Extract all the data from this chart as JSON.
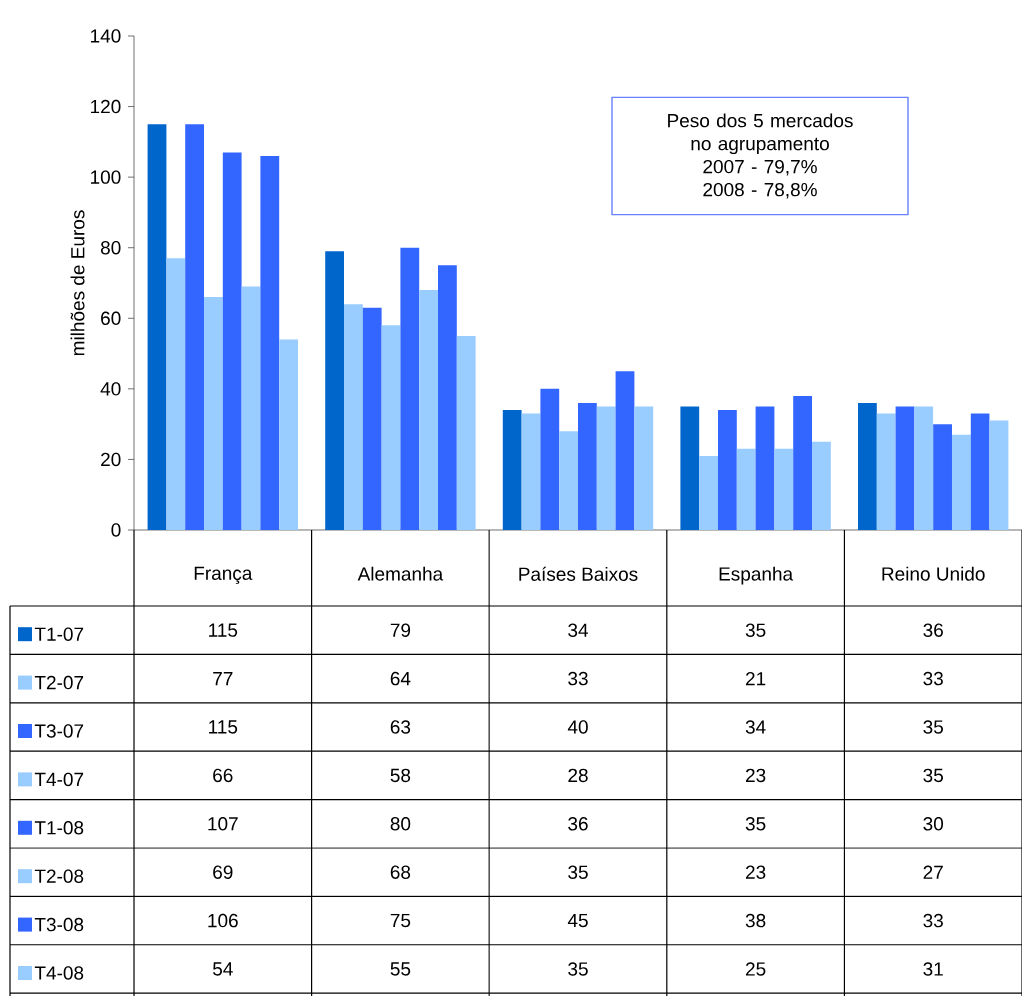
{
  "chart_data": {
    "type": "bar",
    "ylabel": "milhões de Euros",
    "categories": [
      "França",
      "Alemanha",
      "Países Baixos",
      "Espanha",
      "Reino Unido"
    ],
    "series": [
      {
        "name": "T1-07",
        "color": "#0066cc",
        "values": [
          115,
          79,
          34,
          35,
          36
        ]
      },
      {
        "name": "T2-07",
        "color": "#99ccff",
        "values": [
          77,
          64,
          33,
          21,
          33
        ]
      },
      {
        "name": "T3-07",
        "color": "#3366ff",
        "values": [
          115,
          63,
          40,
          34,
          35
        ]
      },
      {
        "name": "T4-07",
        "color": "#99ccff",
        "values": [
          66,
          58,
          28,
          23,
          35
        ]
      },
      {
        "name": "T1-08",
        "color": "#3366ff",
        "values": [
          107,
          80,
          36,
          35,
          30
        ]
      },
      {
        "name": "T2-08",
        "color": "#99ccff",
        "values": [
          69,
          68,
          35,
          23,
          27
        ]
      },
      {
        "name": "T3-08",
        "color": "#3366ff",
        "values": [
          106,
          75,
          45,
          38,
          33
        ]
      },
      {
        "name": "T4-08",
        "color": "#99ccff",
        "values": [
          54,
          55,
          35,
          25,
          31
        ]
      }
    ],
    "ylim": [
      0,
      140
    ],
    "yticks": [
      0,
      20,
      40,
      60,
      80,
      100,
      120,
      140
    ],
    "data_labels": true,
    "legend": "bottom left",
    "annotations": [
      "Peso dos 5 mercados",
      "no agrupamento",
      "2007 - 79,7%",
      "2008 - 78,8%"
    ]
  }
}
